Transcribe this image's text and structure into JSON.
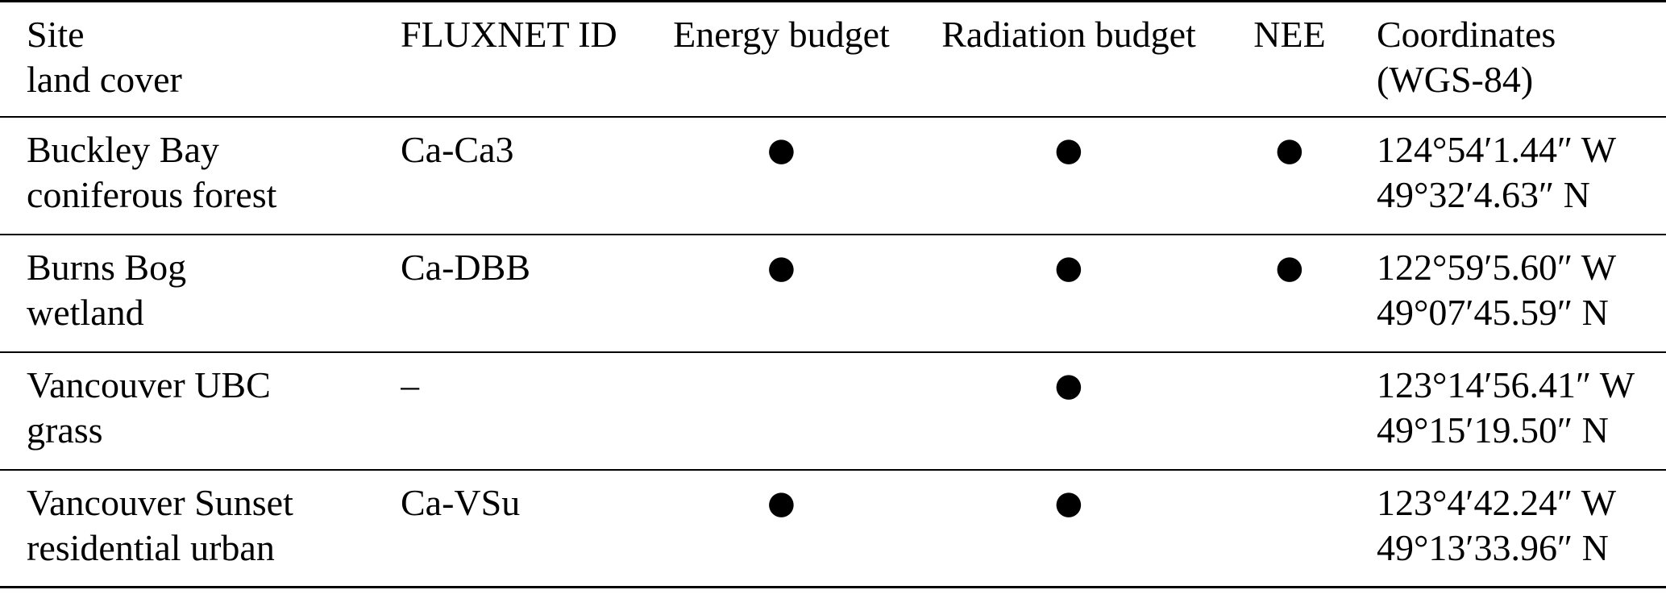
{
  "table": {
    "title": "flux-tower-sites-table",
    "columns": {
      "site": {
        "line1": "Site",
        "line2": "land cover"
      },
      "fluxnet": {
        "label": "FLUXNET ID"
      },
      "energy": {
        "label": "Energy budget"
      },
      "radiation": {
        "label": "Radiation budget"
      },
      "nee": {
        "label": "NEE"
      },
      "coordinates": {
        "line1": "Coordinates",
        "line2": "(WGS-84)"
      }
    },
    "markers": {
      "present": "●",
      "absent": "",
      "no_id": "–"
    },
    "rows": [
      {
        "site": "Buckley Bay",
        "land_cover": "coniferous forest",
        "fluxnet_id": "Ca-Ca3",
        "energy_budget": "●",
        "radiation_budget": "●",
        "nee": "●",
        "longitude": "124°54′1.44″ W",
        "latitude": "49°32′4.63″ N"
      },
      {
        "site": "Burns Bog",
        "land_cover": "wetland",
        "fluxnet_id": "Ca-DBB",
        "energy_budget": "●",
        "radiation_budget": "●",
        "nee": "●",
        "longitude": "122°59′5.60″ W",
        "latitude": "49°07′45.59″ N"
      },
      {
        "site": "Vancouver UBC",
        "land_cover": "grass",
        "fluxnet_id": "–",
        "energy_budget": "",
        "radiation_budget": "●",
        "nee": "",
        "longitude": "123°14′56.41″ W",
        "latitude": "49°15′19.50″ N"
      },
      {
        "site": "Vancouver Sunset",
        "land_cover": "residential urban",
        "fluxnet_id": "Ca-VSu",
        "energy_budget": "●",
        "radiation_budget": "●",
        "nee": "",
        "longitude": "123°4′42.24″ W",
        "latitude": "49°13′33.96″ N"
      }
    ]
  }
}
